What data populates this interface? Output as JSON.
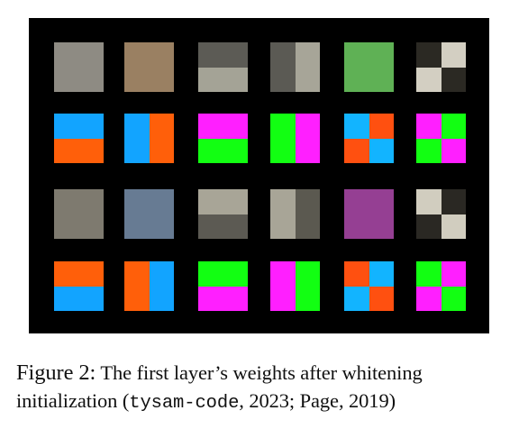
{
  "figure": {
    "grid": {
      "rows": [
        [
          {
            "pattern": "solid",
            "colors": [
              "#8e8b83"
            ]
          },
          {
            "pattern": "solid",
            "colors": [
              "#9a8062"
            ]
          },
          {
            "pattern": "h2",
            "colors": [
              "#5c5b55",
              "#a4a396"
            ]
          },
          {
            "pattern": "v2",
            "colors": [
              "#5b5a54",
              "#a7a598"
            ]
          },
          {
            "pattern": "solid",
            "colors": [
              "#5fb155"
            ]
          },
          {
            "pattern": "q4",
            "colors": [
              "#2b2923",
              "#d3cfc2",
              "#d3cfc2",
              "#2b2923"
            ]
          }
        ],
        [
          {
            "pattern": "h2",
            "colors": [
              "#12a4ff",
              "#ff5f0a"
            ]
          },
          {
            "pattern": "v2",
            "colors": [
              "#12a4ff",
              "#ff5f0a"
            ]
          },
          {
            "pattern": "h2",
            "colors": [
              "#ff1fff",
              "#12ff12"
            ]
          },
          {
            "pattern": "v2",
            "colors": [
              "#12ff12",
              "#ff1fff"
            ]
          },
          {
            "pattern": "q4",
            "colors": [
              "#12b4ff",
              "#ff5010",
              "#ff5010",
              "#12b4ff"
            ]
          },
          {
            "pattern": "q4",
            "colors": [
              "#ff1fff",
              "#12ff12",
              "#12ff12",
              "#ff1fff"
            ]
          }
        ],
        [
          {
            "pattern": "solid",
            "colors": [
              "#7e7a6f"
            ]
          },
          {
            "pattern": "solid",
            "colors": [
              "#677b93"
            ]
          },
          {
            "pattern": "h2",
            "colors": [
              "#a8a597",
              "#5c5a53"
            ]
          },
          {
            "pattern": "v2",
            "colors": [
              "#a8a597",
              "#5b5950"
            ]
          },
          {
            "pattern": "solid",
            "colors": [
              "#953f93"
            ]
          },
          {
            "pattern": "q4",
            "colors": [
              "#d1cdbf",
              "#2a2823",
              "#2a2823",
              "#d1cdbf"
            ]
          }
        ],
        [
          {
            "pattern": "h2",
            "colors": [
              "#ff5f0a",
              "#12a4ff"
            ]
          },
          {
            "pattern": "v2",
            "colors": [
              "#ff5f0a",
              "#12a4ff"
            ]
          },
          {
            "pattern": "h2",
            "colors": [
              "#12ff12",
              "#ff1fff"
            ]
          },
          {
            "pattern": "v2",
            "colors": [
              "#ff1fff",
              "#12ff12"
            ]
          },
          {
            "pattern": "q4",
            "colors": [
              "#ff5010",
              "#12b4ff",
              "#12b4ff",
              "#ff5010"
            ]
          },
          {
            "pattern": "q4",
            "colors": [
              "#12ff12",
              "#ff1fff",
              "#ff1fff",
              "#12ff12"
            ]
          }
        ]
      ]
    }
  },
  "caption": {
    "label": "Figure 2:",
    "text_line1": "The first layer’s weights after whitening",
    "text_line2_start": "initialization (",
    "citation_code": "tysam-code",
    "text_line2_end": ", 2023; Page, 2019)"
  }
}
